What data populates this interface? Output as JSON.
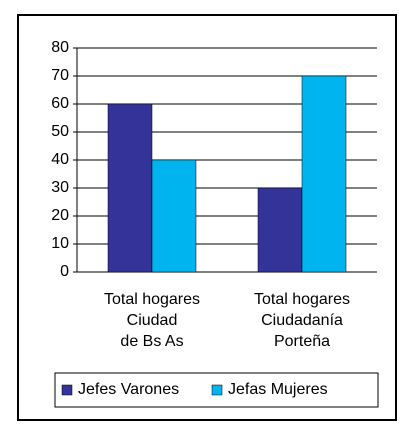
{
  "chart_data": {
    "type": "bar",
    "categories": [
      [
        "Total hogares",
        "Ciudad",
        "de Bs As"
      ],
      [
        "Total hogares",
        "Ciudadanía",
        "Porteña"
      ]
    ],
    "series": [
      {
        "name": "Jefes Varones",
        "color": "#333399",
        "values": [
          60,
          30
        ]
      },
      {
        "name": "Jefas Mujeres",
        "color": "#00b4f0",
        "values": [
          40,
          70
        ]
      }
    ],
    "ylim": [
      0,
      80
    ],
    "yticks": [
      0,
      10,
      20,
      30,
      40,
      50,
      60,
      70,
      80
    ],
    "grid": true,
    "legend": "bottom"
  }
}
